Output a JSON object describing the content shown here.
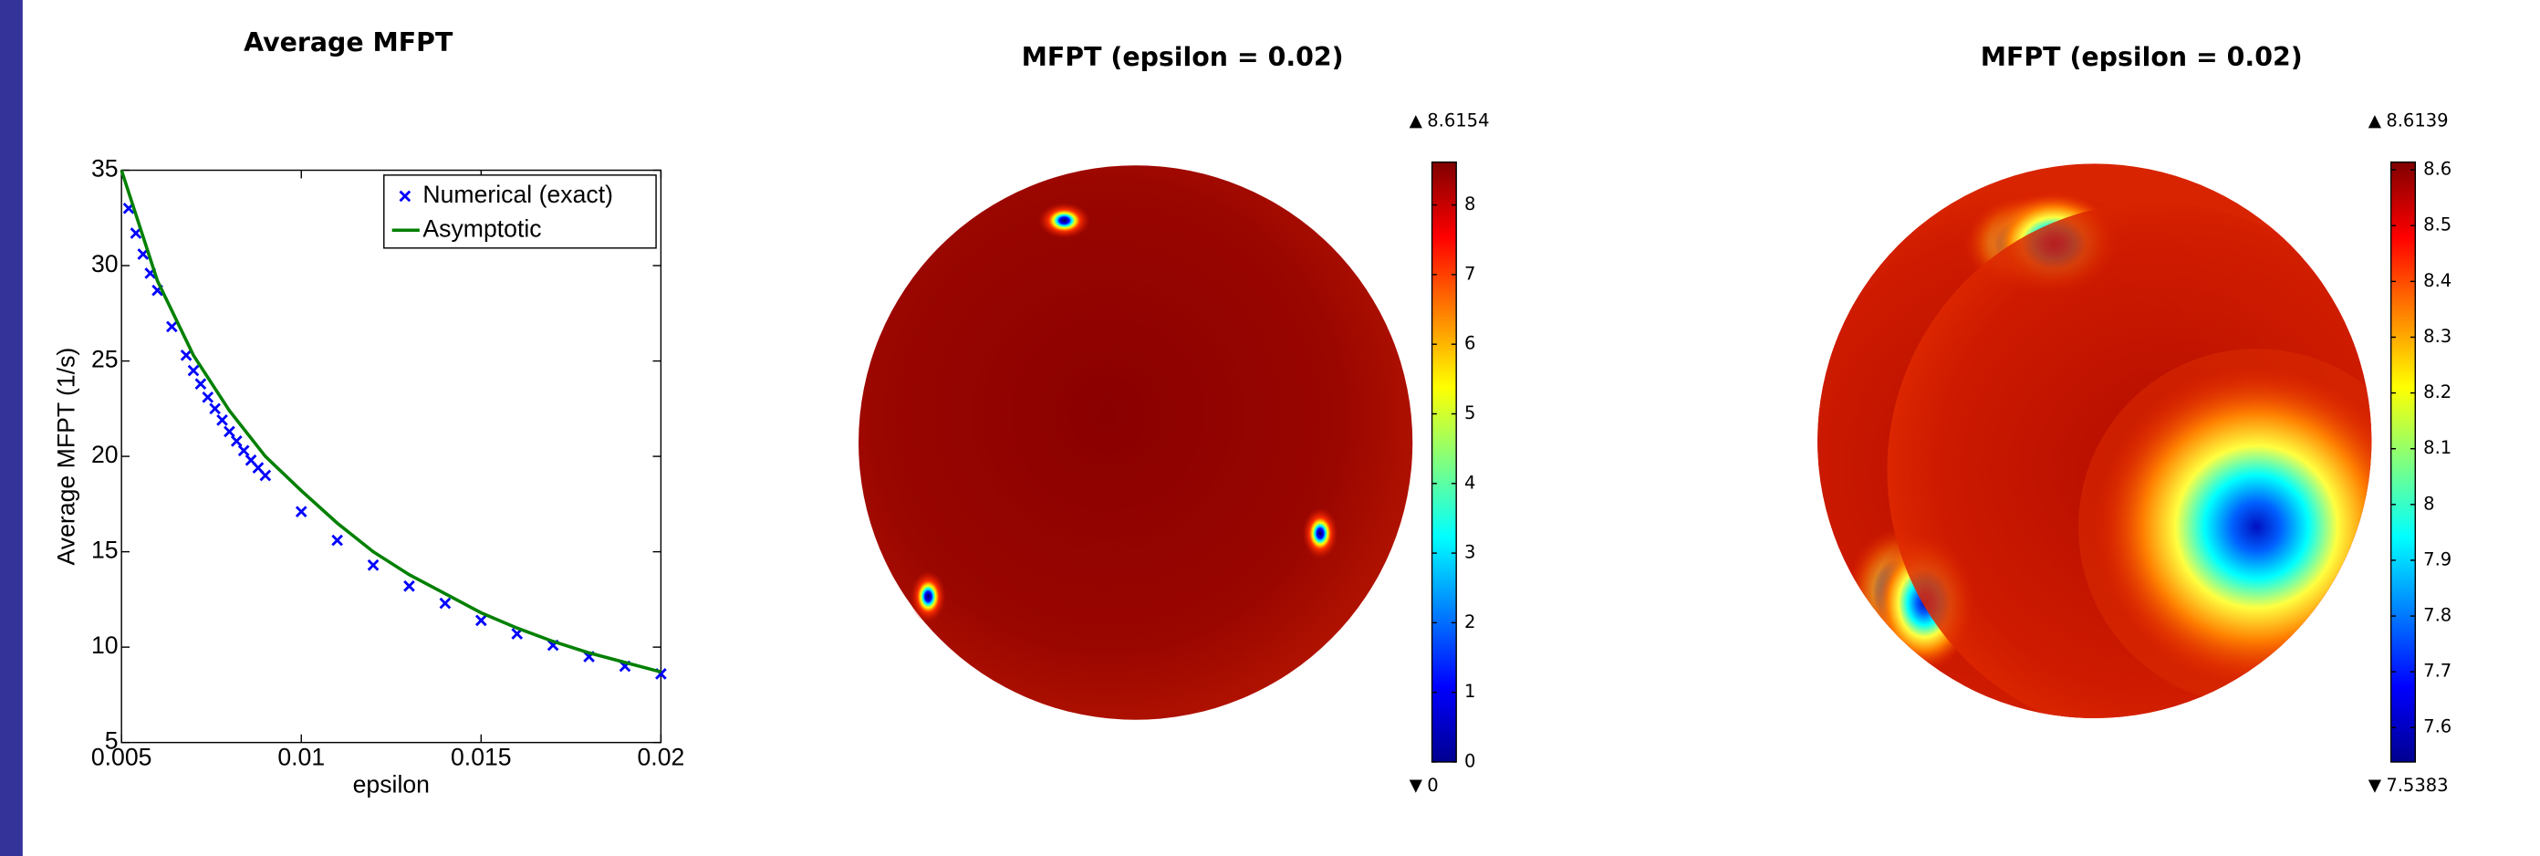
{
  "chart_data": [
    {
      "type": "line",
      "title": "Average MFPT",
      "xlabel": "epsilon",
      "ylabel": "Average MFPT (1/s)",
      "xlim": [
        0.005,
        0.02
      ],
      "ylim": [
        5,
        35
      ],
      "xticks": [
        0.005,
        0.01,
        0.015,
        0.02
      ],
      "yticks": [
        5,
        10,
        15,
        20,
        25,
        30,
        35
      ],
      "legend": "upper right",
      "series": [
        {
          "name": "Numerical (exact)",
          "color": "#0000ff",
          "marker": "x",
          "x": [
            0.0052,
            0.0054,
            0.0056,
            0.0058,
            0.006,
            0.0064,
            0.0068,
            0.007,
            0.0072,
            0.0074,
            0.0076,
            0.0078,
            0.008,
            0.0082,
            0.0084,
            0.0086,
            0.0088,
            0.009,
            0.01,
            0.011,
            0.012,
            0.013,
            0.014,
            0.015,
            0.016,
            0.017,
            0.018,
            0.019,
            0.02
          ],
          "values": [
            33,
            31.7,
            30.6,
            29.6,
            28.7,
            26.8,
            25.3,
            24.5,
            23.8,
            23.1,
            22.5,
            21.9,
            21.3,
            20.8,
            20.3,
            19.8,
            19.4,
            19,
            17.1,
            15.6,
            14.3,
            13.2,
            12.3,
            11.4,
            10.7,
            10.1,
            9.5,
            9,
            8.6
          ]
        },
        {
          "name": "Asymptotic",
          "color": "#008000",
          "marker": "none",
          "x": [
            0.005,
            0.006,
            0.007,
            0.008,
            0.009,
            0.01,
            0.011,
            0.012,
            0.013,
            0.014,
            0.015,
            0.016,
            0.017,
            0.018,
            0.019,
            0.02
          ],
          "values": [
            35,
            29.2,
            25.3,
            22.4,
            20,
            18.2,
            16.5,
            15,
            13.8,
            12.8,
            11.8,
            11,
            10.3,
            9.7,
            9.2,
            8.7
          ]
        }
      ]
    },
    {
      "type": "colormap",
      "title": "MFPT (epsilon = 0.02)",
      "clim": [
        0,
        8.6154
      ],
      "cticks": [
        0,
        1,
        2,
        3,
        4,
        5,
        6,
        7,
        8
      ]
    },
    {
      "type": "colormap",
      "title": "MFPT (epsilon = 0.02)",
      "clim": [
        7.5383,
        8.6139
      ],
      "cticks": [
        7.6,
        7.7,
        7.8,
        7.9,
        8,
        8.1,
        8.2,
        8.3,
        8.4,
        8.5,
        8.6
      ]
    }
  ]
}
